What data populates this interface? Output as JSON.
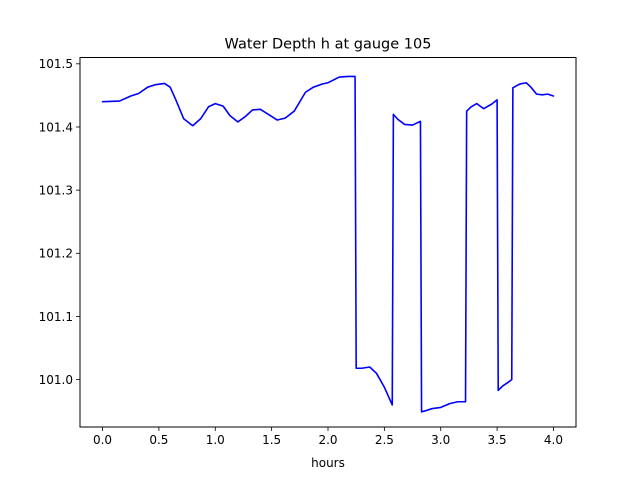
{
  "chart_data": {
    "type": "line",
    "title": "Water Depth h at gauge 105",
    "xlabel": "hours",
    "ylabel": "",
    "xlim": [
      -0.2,
      4.2
    ],
    "ylim": [
      100.925,
      101.51
    ],
    "xticks": [
      0.0,
      0.5,
      1.0,
      1.5,
      2.0,
      2.5,
      3.0,
      3.5,
      4.0
    ],
    "xtick_labels": [
      "0.0",
      "0.5",
      "1.0",
      "1.5",
      "2.0",
      "2.5",
      "3.0",
      "3.5",
      "4.0"
    ],
    "yticks": [
      101.0,
      101.1,
      101.2,
      101.3,
      101.4,
      101.5
    ],
    "ytick_labels": [
      "101.0",
      "101.1",
      "101.2",
      "101.3",
      "101.4",
      "101.5"
    ],
    "grid": false,
    "series": [
      {
        "color": "#0000ff",
        "x": [
          0.0,
          0.15,
          0.25,
          0.32,
          0.4,
          0.47,
          0.55,
          0.6,
          0.65,
          0.72,
          0.8,
          0.87,
          0.94,
          1.0,
          1.07,
          1.13,
          1.2,
          1.27,
          1.33,
          1.4,
          1.47,
          1.55,
          1.62,
          1.7,
          1.8,
          1.87,
          1.95,
          2.0,
          2.1,
          2.18,
          2.24,
          2.25,
          2.3,
          2.37,
          2.43,
          2.5,
          2.57,
          2.58,
          2.62,
          2.68,
          2.75,
          2.82,
          2.83,
          2.87,
          2.92,
          3.0,
          3.08,
          3.15,
          3.22,
          3.23,
          3.27,
          3.32,
          3.38,
          3.45,
          3.5,
          3.51,
          3.55,
          3.6,
          3.63,
          3.64,
          3.7,
          3.76,
          3.8,
          3.85,
          3.9,
          3.95,
          4.0
        ],
        "values": [
          101.44,
          101.441,
          101.449,
          101.453,
          101.463,
          101.467,
          101.469,
          101.463,
          101.443,
          101.413,
          101.402,
          101.413,
          101.432,
          101.437,
          101.433,
          101.418,
          101.408,
          101.417,
          101.427,
          101.428,
          101.42,
          101.411,
          101.414,
          101.425,
          101.455,
          101.463,
          101.468,
          101.47,
          101.479,
          101.48,
          101.48,
          101.018,
          101.018,
          101.02,
          101.01,
          100.988,
          100.96,
          101.42,
          101.412,
          101.404,
          101.403,
          101.409,
          100.949,
          100.951,
          100.954,
          100.956,
          100.962,
          100.965,
          100.965,
          101.425,
          101.432,
          101.437,
          101.429,
          101.436,
          101.443,
          100.983,
          100.99,
          100.996,
          101.0,
          101.462,
          101.468,
          101.47,
          101.463,
          101.452,
          101.451,
          101.452,
          101.449
        ]
      }
    ]
  }
}
